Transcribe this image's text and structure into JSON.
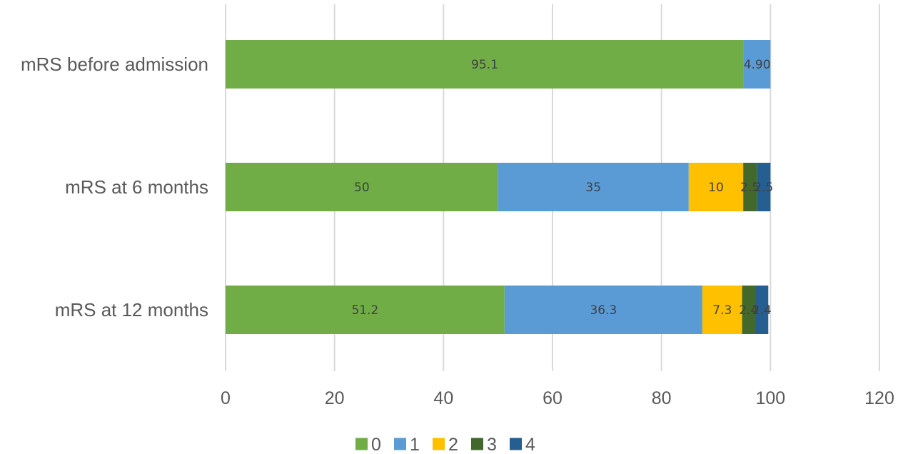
{
  "chart_data": {
    "type": "bar",
    "orientation": "horizontal",
    "stacked": true,
    "title": "",
    "xlabel": "",
    "ylabel": "",
    "categories": [
      "mRS before admission",
      "mRS at 6 months",
      "mRS at 12 months"
    ],
    "xlim": [
      0,
      120
    ],
    "xticks": [
      0,
      20,
      40,
      60,
      80,
      100,
      120
    ],
    "grid": "vertical",
    "legend_position": "bottom",
    "series": [
      {
        "name": "0",
        "color": "#70ad47",
        "values": [
          95.1,
          50,
          51.2
        ],
        "labels": [
          "95.1",
          "50",
          "51.2"
        ]
      },
      {
        "name": "1",
        "color": "#5b9bd5",
        "values": [
          4.9,
          35,
          36.3
        ],
        "labels": [
          "4.90",
          "35",
          "36.3"
        ]
      },
      {
        "name": "2",
        "color": "#ffc000",
        "values": [
          0,
          10,
          7.3
        ],
        "labels": [
          "",
          "10",
          "7.3"
        ]
      },
      {
        "name": "3",
        "color": "#43682b",
        "values": [
          0,
          2.5,
          2.4
        ],
        "labels": [
          "",
          "2.5",
          "2.4"
        ]
      },
      {
        "name": "4",
        "color": "#255e91",
        "values": [
          0,
          2.5,
          2.4
        ],
        "labels": [
          "",
          "2.5",
          "2.4"
        ]
      }
    ]
  }
}
